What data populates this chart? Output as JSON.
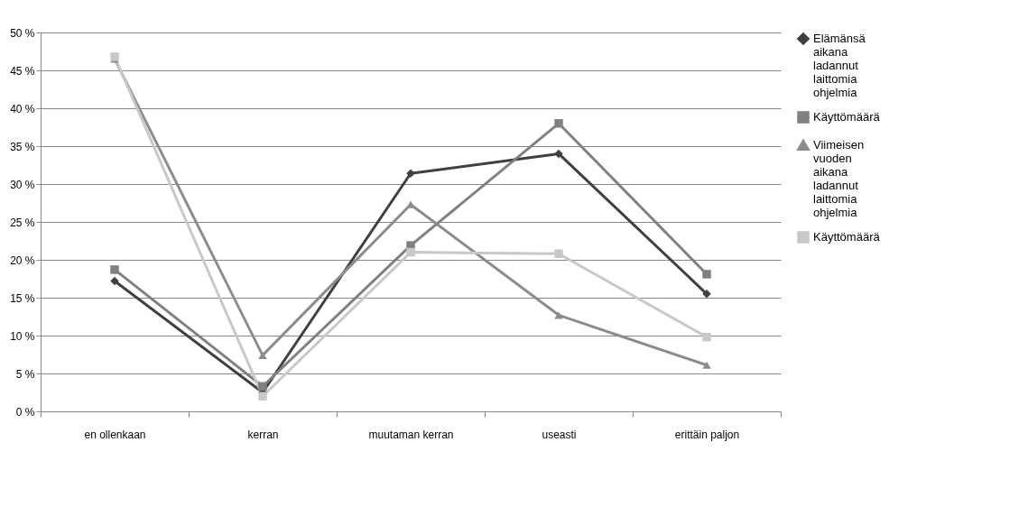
{
  "chart_data": {
    "type": "line",
    "categories": [
      "en ollenkaan",
      "kerran",
      "muutaman  kerran",
      "useasti",
      "erittäin paljon"
    ],
    "series": [
      {
        "name": "Elämänsä aikana ladannut laittomia ohjelmia",
        "color": "#404040",
        "marker": "diamond",
        "values": [
          17.2,
          2.5,
          31.4,
          34.0,
          15.5
        ]
      },
      {
        "name": "Käyttömäärä",
        "color": "#808080",
        "marker": "square",
        "values": [
          18.7,
          3.3,
          21.9,
          38.0,
          18.1
        ]
      },
      {
        "name": "Viimeisen vuoden aikana ladannut laittomia ohjelmia",
        "color": "#8c8c8c",
        "marker": "triangle",
        "values": [
          46.5,
          7.4,
          27.3,
          12.7,
          6.1
        ]
      },
      {
        "name": "Käyttömäärä",
        "color": "#c8c8c8",
        "marker": "square",
        "values": [
          46.8,
          2.0,
          21.0,
          20.8,
          9.8
        ]
      }
    ],
    "ylim": [
      0,
      50
    ],
    "yticks": [
      {
        "value": 0,
        "label": "0 %"
      },
      {
        "value": 5,
        "label": "5 %"
      },
      {
        "value": 10,
        "label": "10 %"
      },
      {
        "value": 15,
        "label": "15 %"
      },
      {
        "value": 20,
        "label": "20 %"
      },
      {
        "value": 25,
        "label": "25 %"
      },
      {
        "value": 30,
        "label": "30 %"
      },
      {
        "value": 35,
        "label": "35 %"
      },
      {
        "value": 40,
        "label": "40 %"
      },
      {
        "value": 45,
        "label": "45 %"
      },
      {
        "value": 50,
        "label": "50 %"
      }
    ],
    "grid": "y",
    "legend": "right"
  }
}
